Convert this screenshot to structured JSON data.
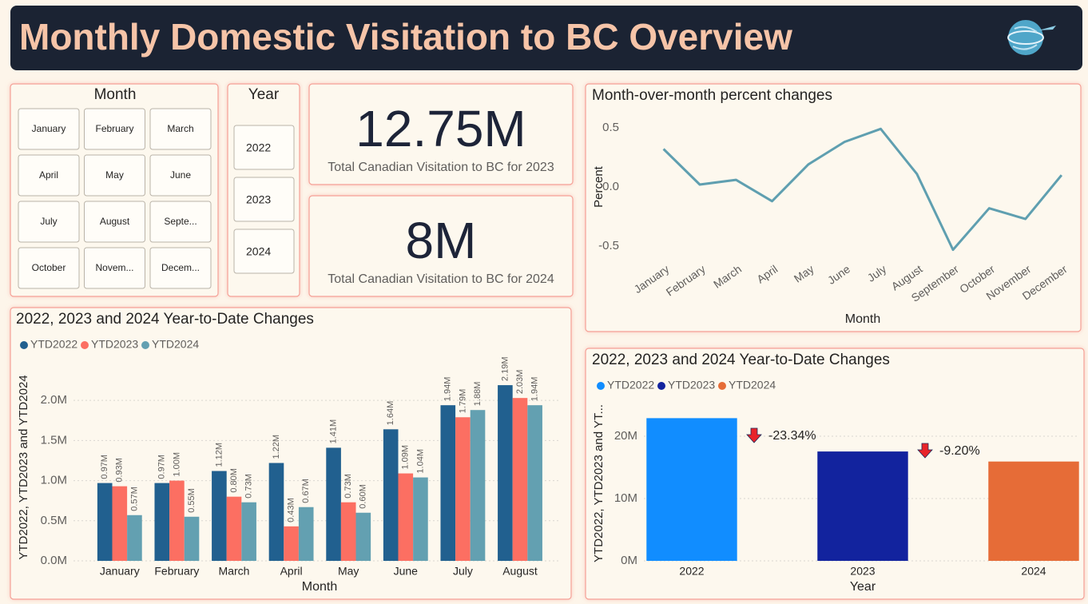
{
  "header": {
    "title": "Monthly Domestic Visitation to BC Overview"
  },
  "slicers": {
    "month": {
      "title": "Month",
      "items": [
        "January",
        "February",
        "March",
        "April",
        "May",
        "June",
        "July",
        "August",
        "Septe...",
        "October",
        "Novem...",
        "Decem..."
      ]
    },
    "year": {
      "title": "Year",
      "items": [
        "2022",
        "2023",
        "2024"
      ]
    }
  },
  "cards": [
    {
      "value": "12.75M",
      "label": "Total Canadian Visitation to BC for 2023"
    },
    {
      "value": "8M",
      "label": "Total Canadian Visitation to BC for 2024"
    }
  ],
  "chart_data": [
    {
      "type": "line",
      "title": "Month-over-month percent changes",
      "x_label": "Month",
      "y_label": "Percent",
      "categories": [
        "January",
        "February",
        "March",
        "April",
        "May",
        "June",
        "July",
        "August",
        "September",
        "October",
        "November",
        "December"
      ],
      "series": [
        {
          "name": "Percent",
          "color": "#5f9fb0",
          "values": [
            0.32,
            0.02,
            0.06,
            -0.12,
            0.19,
            0.38,
            0.49,
            0.11,
            -0.53,
            -0.18,
            -0.27,
            0.1
          ]
        }
      ],
      "ylim": [
        -0.6,
        0.6
      ],
      "yticks": [
        -0.5,
        {
          "value": 0,
          "label": "0.0"
        },
        0.5
      ],
      "grid": false
    },
    {
      "type": "bar",
      "title": "2022, 2023 and 2024 Year-to-Date Changes",
      "x_label": "Month",
      "y_label": "YTD2022, YTD2023 and YTD2024",
      "categories": [
        "January",
        "February",
        "March",
        "April",
        "May",
        "June",
        "July",
        "August"
      ],
      "series": [
        {
          "name": "YTD2022",
          "color": "#21608f",
          "values": [
            970000,
            970000,
            1120000,
            1220000,
            1410000,
            1640000,
            1940000,
            2190000
          ],
          "value_labels": [
            "0.97M",
            "0.97M",
            "1.12M",
            "1.22M",
            "1.41M",
            "1.64M",
            "1.94M",
            "2.19M"
          ]
        },
        {
          "name": "YTD2023",
          "color": "#fc6f62",
          "values": [
            930000,
            1000000,
            800000,
            430000,
            730000,
            1090000,
            1790000,
            2030000
          ],
          "value_labels": [
            "0.93M",
            "1.00M",
            "0.80M",
            "0.43M",
            "0.73M",
            "1.09M",
            "1.79M",
            "2.03M"
          ]
        },
        {
          "name": "YTD2024",
          "color": "#63a0b1",
          "values": [
            570000,
            550000,
            730000,
            670000,
            600000,
            1040000,
            1880000,
            1940000
          ],
          "value_labels": [
            "0.57M",
            "0.55M",
            "0.73M",
            "0.67M",
            "0.60M",
            "1.04M",
            "1.88M",
            "1.94M"
          ]
        }
      ],
      "ylim": [
        0,
        2400000
      ],
      "yticks": [
        {
          "value": 0,
          "label": "0.0M"
        },
        {
          "value": 500000,
          "label": "0.5M"
        },
        {
          "value": 1000000,
          "label": "1.0M"
        },
        {
          "value": 1500000,
          "label": "1.5M"
        },
        {
          "value": 2000000,
          "label": "2.0M"
        }
      ],
      "grid": true
    },
    {
      "type": "bar",
      "title": "2022, 2023 and 2024 Year-to-Date Changes",
      "x_label": "Year",
      "y_label": "YTD2022, YTD2023 and YT...",
      "categories": [
        "2022",
        "2023",
        "2024"
      ],
      "series": [
        {
          "name": "YTD2022",
          "color": "#118dff",
          "values": [
            22900000,
            null,
            null
          ]
        },
        {
          "name": "YTD2023",
          "color": "#12239e",
          "values": [
            null,
            17550000,
            null
          ]
        },
        {
          "name": "YTD2024",
          "color": "#e66c37",
          "values": [
            null,
            null,
            15940000
          ]
        }
      ],
      "annotations": [
        "-23.34%",
        "-9.20%"
      ],
      "ylim": [
        0,
        25000000
      ],
      "yticks": [
        {
          "value": 0,
          "label": "0M"
        },
        {
          "value": 10000000,
          "label": "10M"
        },
        {
          "value": 20000000,
          "label": "20M"
        }
      ],
      "grid": true
    }
  ]
}
